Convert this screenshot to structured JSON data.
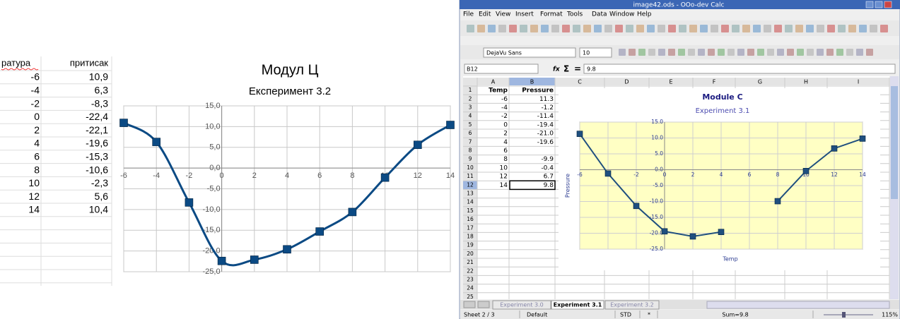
{
  "left_sheet": {
    "headers": [
      "ратура",
      "притисак"
    ],
    "rows": [
      [
        "-6",
        "10,9"
      ],
      [
        "-4",
        "6,3"
      ],
      [
        "-2",
        "-8,3"
      ],
      [
        "0",
        "-22,4"
      ],
      [
        "2",
        "-22,1"
      ],
      [
        "4",
        "-19,6"
      ],
      [
        "6",
        "-15,3"
      ],
      [
        "8",
        "-10,6"
      ],
      [
        "10",
        "-2,3"
      ],
      [
        "12",
        "5,6"
      ],
      [
        "14",
        "10,4"
      ]
    ]
  },
  "window": {
    "title": "image42.ods - OOo-dev Calc",
    "menu": [
      "File",
      "Edit",
      "View",
      "Insert",
      "Format",
      "Tools",
      "Data",
      "Window",
      "Help"
    ],
    "font_name": "DejaVu Sans",
    "font_size": "10",
    "cell_ref": "B12",
    "formula_symbols": [
      "fx",
      "Σ",
      "="
    ],
    "formula": "9.8",
    "columns": [
      "A",
      "B",
      "C",
      "D",
      "E",
      "F",
      "G",
      "H",
      "I"
    ],
    "row_numbers": [
      1,
      2,
      3,
      4,
      5,
      6,
      7,
      8,
      9,
      10,
      11,
      12,
      13,
      14,
      15,
      16,
      17,
      18,
      19,
      20,
      21,
      22,
      23,
      24,
      25
    ],
    "table": {
      "headers": [
        "Temp",
        "Pressure"
      ],
      "rows": [
        [
          "-6",
          "11.3"
        ],
        [
          "-4",
          "-1.2"
        ],
        [
          "-2",
          "-11.4"
        ],
        [
          "0",
          "-19.4"
        ],
        [
          "2",
          "-21.0"
        ],
        [
          "4",
          "-19.6"
        ],
        [
          "6"
        ],
        [
          "8",
          "-9.9"
        ],
        [
          "10",
          "-0.4"
        ],
        [
          "12",
          "6.7"
        ],
        [
          "14",
          "9.8"
        ]
      ]
    },
    "sheet_tabs": [
      "Experiment 3.0",
      "Experiment 3.1",
      "Experiment 3.2"
    ],
    "active_tab": 1,
    "status": [
      "Sheet 2 / 3",
      "Default",
      "STD",
      "*",
      "Sum=9.8",
      "115%"
    ]
  },
  "chart_data": [
    {
      "type": "line",
      "title": "Модул Ц",
      "subtitle": "Експеримент 3.2",
      "smooth": true,
      "x": [
        -6,
        -4,
        -2,
        0,
        2,
        4,
        6,
        8,
        10,
        12,
        14
      ],
      "series": [
        {
          "color": "#0b4a84",
          "values": [
            10.9,
            6.3,
            -8.3,
            -22.4,
            -22.1,
            -19.6,
            -15.3,
            -10.6,
            -2.3,
            5.6,
            10.4
          ]
        }
      ],
      "xlim": [
        -6,
        14
      ],
      "xticks": [
        -6,
        -4,
        -2,
        0,
        2,
        4,
        6,
        8,
        10,
        12,
        14
      ],
      "ylim": [
        -25,
        15
      ],
      "yticks": [
        {
          "value": 15,
          "label": "15,0"
        },
        {
          "value": 10,
          "label": "10,0"
        },
        {
          "value": 5,
          "label": "5,0"
        },
        {
          "value": 0,
          "label": "0,0"
        },
        {
          "value": -5,
          "label": "-5,0"
        },
        {
          "value": -10,
          "label": "-10,0"
        },
        {
          "value": -15,
          "label": "-15,0"
        },
        {
          "value": -20,
          "label": "-20,0"
        },
        {
          "value": -25,
          "label": "-25,0"
        }
      ],
      "grid": true,
      "plot_background": "#ffffff"
    },
    {
      "type": "line",
      "title": "Module C",
      "subtitle": "Experiment 3.1",
      "xlabel": "Temp",
      "ylabel": "Pressure",
      "smooth": false,
      "x": [
        -6,
        -4,
        -2,
        0,
        2,
        4,
        6,
        8,
        10,
        12,
        14
      ],
      "series": [
        {
          "color": "#1f4f7f",
          "values": [
            11.3,
            -1.2,
            -11.4,
            -19.4,
            -21.0,
            -19.6,
            null,
            -9.9,
            -0.4,
            6.7,
            9.8
          ]
        }
      ],
      "xlim": [
        -6,
        14
      ],
      "xticks": [
        -6,
        -4,
        -2,
        0,
        2,
        4,
        6,
        8,
        10,
        12,
        14
      ],
      "ylim": [
        -25,
        15
      ],
      "yticks": [
        {
          "value": 15,
          "label": "15.0"
        },
        {
          "value": 10,
          "label": "10.0"
        },
        {
          "value": 5,
          "label": "5.0"
        },
        {
          "value": 0,
          "label": "0.0"
        },
        {
          "value": -5,
          "label": "-5.0"
        },
        {
          "value": -10,
          "label": "-10.0"
        },
        {
          "value": -15,
          "label": "-15.0"
        },
        {
          "value": -20,
          "label": "-20.0"
        },
        {
          "value": -25,
          "label": "-25.0"
        }
      ],
      "grid": true,
      "plot_background": "#ffffc4"
    }
  ]
}
